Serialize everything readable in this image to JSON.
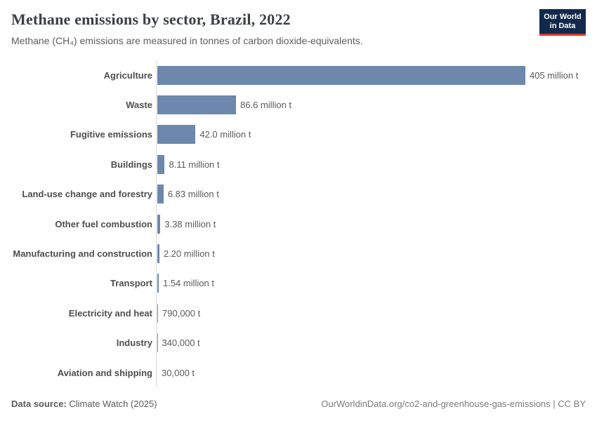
{
  "header": {
    "title": "Methane emissions by sector, Brazil, 2022",
    "subtitle": "Methane (CH₄) emissions are measured in tonnes of carbon dioxide-equivalents.",
    "logo": {
      "line1": "Our World",
      "line2": "in Data"
    }
  },
  "chart_data": {
    "type": "bar",
    "orientation": "horizontal",
    "title": "Methane emissions by sector, Brazil, 2022",
    "xlabel": "",
    "ylabel": "",
    "unit": "tonnes of carbon dioxide-equivalents",
    "xlim": [
      0,
      405000000
    ],
    "grid": false,
    "legend": "none",
    "bar_color": "#6d87ad",
    "axis_line_color": "#dadada",
    "categories": [
      "Agriculture",
      "Waste",
      "Fugitive emissions",
      "Buildings",
      "Land-use change and forestry",
      "Other fuel combustion",
      "Manufacturing and construction",
      "Transport",
      "Electricity and heat",
      "Industry",
      "Aviation and shipping"
    ],
    "values": [
      405000000,
      86600000,
      42000000,
      8110000,
      6830000,
      3380000,
      2200000,
      1540000,
      790000,
      340000,
      30000
    ],
    "value_labels": [
      "405 million t",
      "86.6 million t",
      "42.0 million t",
      "8.11 million t",
      "6.83 million t",
      "3.38 million t",
      "2.20 million t",
      "1.54 million t",
      "790,000 t",
      "340,000 t",
      "30,000 t"
    ]
  },
  "footer": {
    "source_label": "Data source:",
    "source_value": "Climate Watch (2025)",
    "right_text": "OurWorldinData.org/co2-and-greenhouse-gas-emissions | CC BY"
  },
  "colors": {
    "bar": "#6d87ad",
    "logo_bg": "#12294b",
    "logo_stripe": "#d93a2b",
    "title_text": "#3b4045",
    "muted_text": "#5b5b5b"
  }
}
